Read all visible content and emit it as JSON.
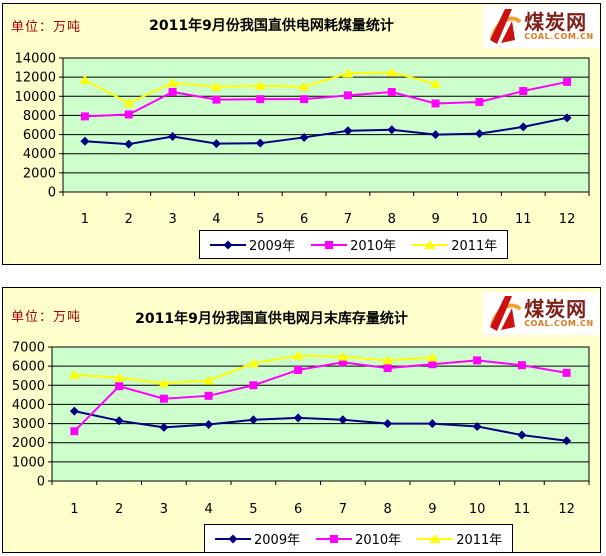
{
  "page": {
    "background": "#ffffff",
    "panel_bg": "#ffffcc"
  },
  "logo": {
    "brand": "煤炭网",
    "url": "COAL.COM.CN",
    "icon": "coal-logo-swoosh",
    "colors": {
      "brand_text": "#7e1f18",
      "url_text": "#e07820",
      "swoosh_red": "#cc1111",
      "swoosh_orange": "#f0a030"
    }
  },
  "chart_data": [
    {
      "type": "line",
      "title": "2011年9月份我国直供电网耗煤量统计",
      "unit_label": "单位：万吨",
      "categories": [
        "1",
        "2",
        "3",
        "4",
        "5",
        "6",
        "7",
        "8",
        "9",
        "10",
        "11",
        "12"
      ],
      "xlabel": "",
      "ylabel": "万吨",
      "ylim": [
        0,
        14000
      ],
      "ytick_step": 2000,
      "yticks": [
        0,
        2000,
        4000,
        6000,
        8000,
        10000,
        12000,
        14000
      ],
      "grid": true,
      "plot_bg": "#ccffcc",
      "grid_color": "#000000",
      "legend_position": "bottom",
      "series": [
        {
          "name": "2009年",
          "color": "#000080",
          "marker": "diamond",
          "values": [
            5300,
            5000,
            5800,
            5050,
            5100,
            5700,
            6400,
            6500,
            6000,
            6100,
            6800,
            7750
          ]
        },
        {
          "name": "2010年",
          "color": "#ff00ff",
          "marker": "square",
          "values": [
            7900,
            8100,
            10450,
            9650,
            9700,
            9700,
            10100,
            10450,
            9250,
            9400,
            10550,
            11500
          ]
        },
        {
          "name": "2011年",
          "color": "#ffff00",
          "marker": "triangle",
          "values": [
            11700,
            9300,
            11400,
            11000,
            11100,
            11000,
            12400,
            12500,
            11300
          ]
        }
      ]
    },
    {
      "type": "line",
      "title": "2011年9月份我国直供电网月末库存量统计",
      "unit_label": "单位：万吨",
      "categories": [
        "1",
        "2",
        "3",
        "4",
        "5",
        "6",
        "7",
        "8",
        "9",
        "10",
        "11",
        "12"
      ],
      "xlabel": "",
      "ylabel": "万吨",
      "ylim": [
        0,
        7000
      ],
      "ytick_step": 1000,
      "yticks": [
        0,
        1000,
        2000,
        3000,
        4000,
        5000,
        6000,
        7000
      ],
      "grid": true,
      "plot_bg": "#ccffcc",
      "grid_color": "#000000",
      "legend_position": "bottom",
      "series": [
        {
          "name": "2009年",
          "color": "#000080",
          "marker": "diamond",
          "values": [
            3650,
            3150,
            2800,
            2950,
            3200,
            3300,
            3200,
            3000,
            3000,
            2850,
            2400,
            2100
          ]
        },
        {
          "name": "2010年",
          "color": "#ff00ff",
          "marker": "square",
          "values": [
            2600,
            4950,
            4300,
            4450,
            5000,
            5800,
            6200,
            5900,
            6100,
            6300,
            6050,
            5650
          ]
        },
        {
          "name": "2011年",
          "color": "#ffff00",
          "marker": "triangle",
          "values": [
            5550,
            5400,
            5100,
            5250,
            6150,
            6550,
            6500,
            6300,
            6450
          ]
        }
      ]
    }
  ]
}
